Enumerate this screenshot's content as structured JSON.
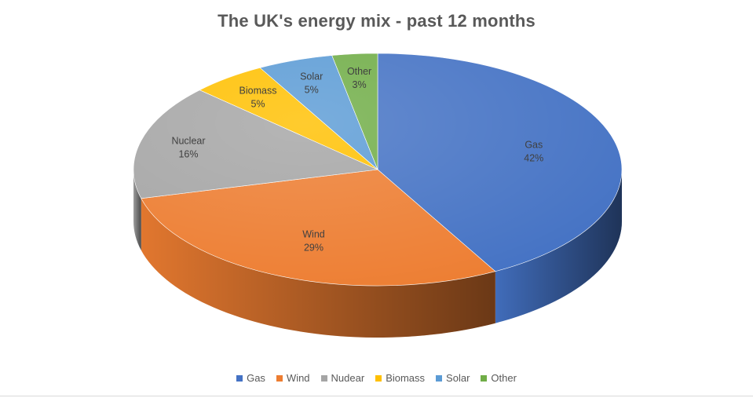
{
  "chart_data": {
    "type": "pie",
    "title": "The UK's energy mix - past 12 months",
    "categories": [
      "Gas",
      "Wind",
      "Nuclear",
      "Biomass",
      "Solar",
      "Other"
    ],
    "values": [
      42,
      29,
      16,
      5,
      5,
      3
    ],
    "value_labels": [
      "42%",
      "29%",
      "16%",
      "5%",
      "5%",
      "3%"
    ],
    "colors": [
      "#4472C4",
      "#ED7D31",
      "#A5A5A5",
      "#FFC000",
      "#5B9BD5",
      "#70AD47"
    ],
    "legend": {
      "position": "bottom",
      "entries": [
        "Gas",
        "Wind",
        "Nudear",
        "Biomass",
        "Solar",
        "Other"
      ]
    },
    "style": "3d"
  }
}
